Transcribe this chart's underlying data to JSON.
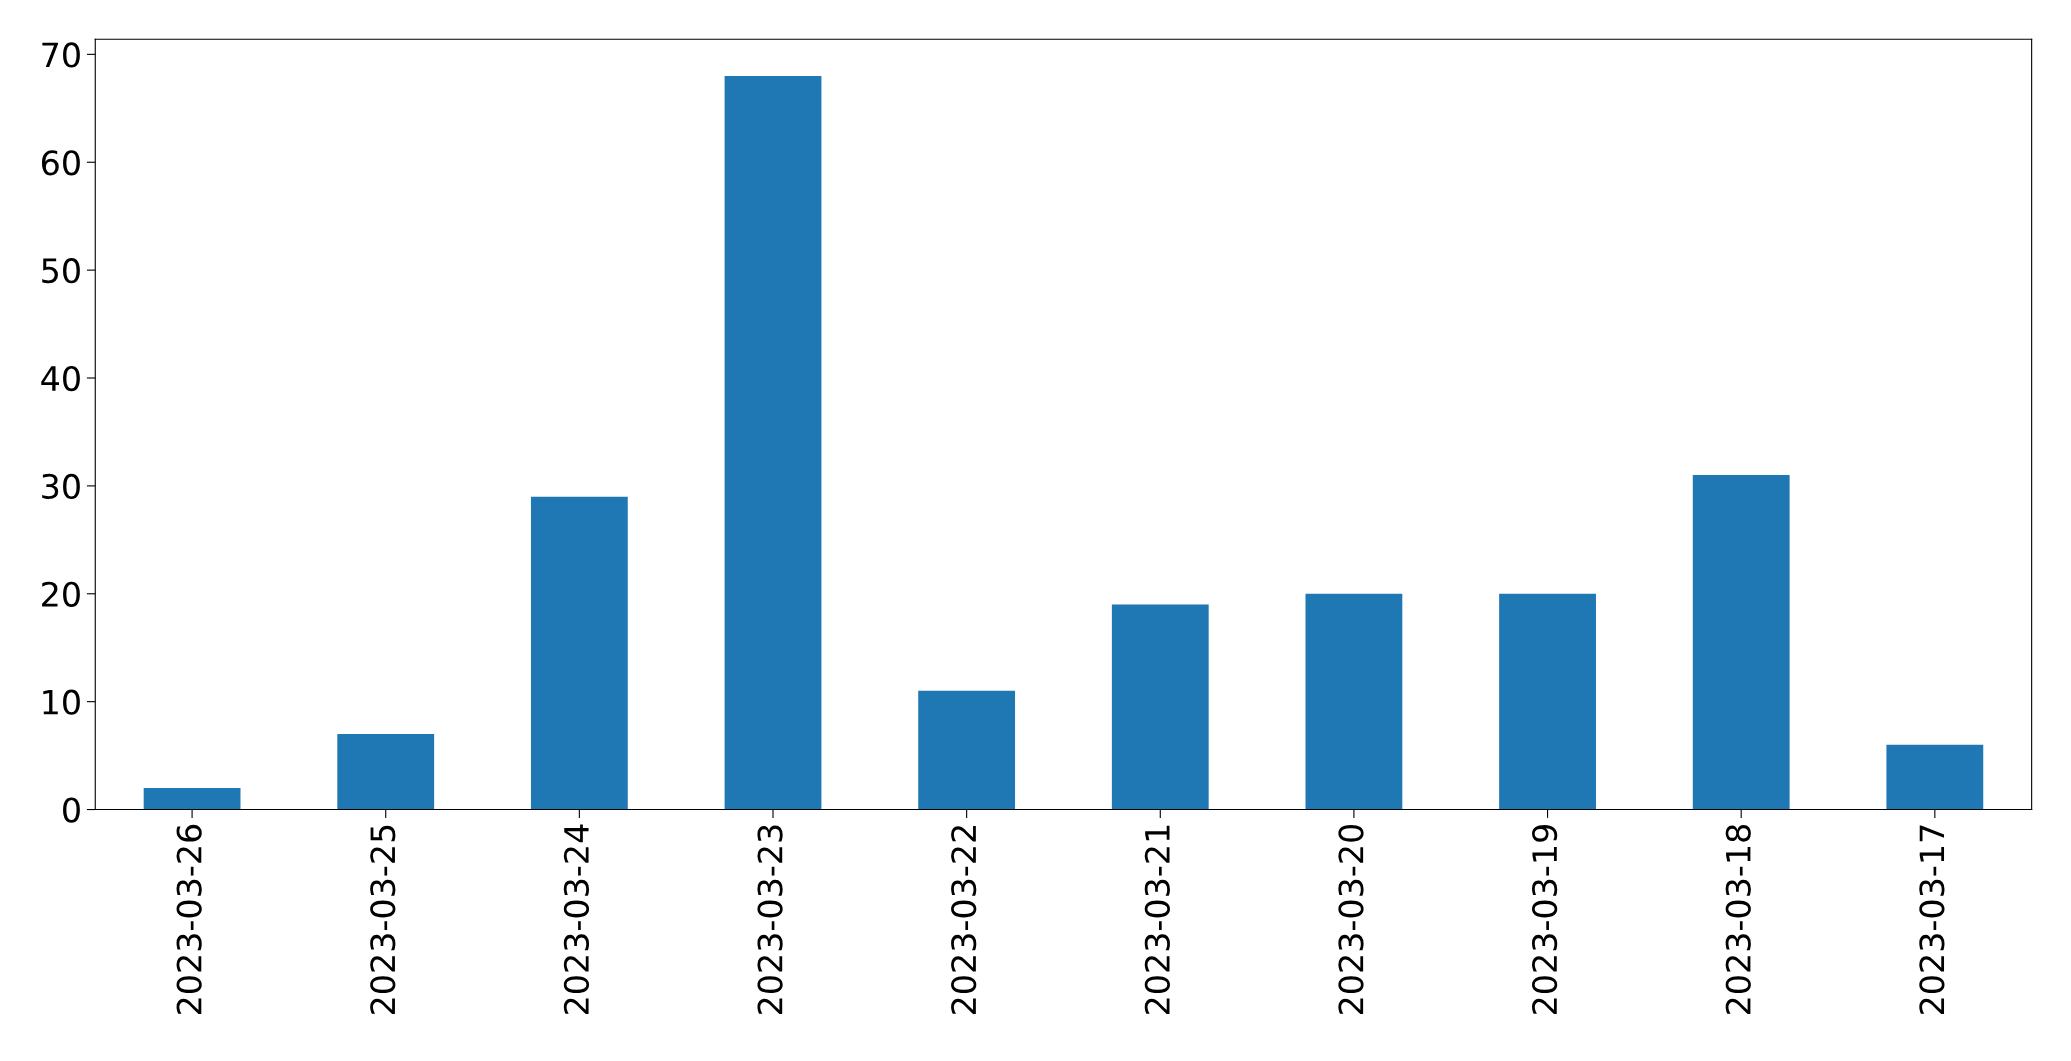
{
  "chart_data": {
    "type": "bar",
    "categories": [
      "2023-03-26",
      "2023-03-25",
      "2023-03-24",
      "2023-03-23",
      "2023-03-22",
      "2023-03-21",
      "2023-03-20",
      "2023-03-19",
      "2023-03-18",
      "2023-03-17"
    ],
    "values": [
      2,
      7,
      29,
      68,
      11,
      19,
      20,
      20,
      31,
      6
    ],
    "color": "#1f77b4",
    "ylim": [
      0,
      71.4
    ],
    "yticks": [
      0,
      10,
      20,
      30,
      40,
      50,
      60,
      70
    ],
    "grid": false
  }
}
